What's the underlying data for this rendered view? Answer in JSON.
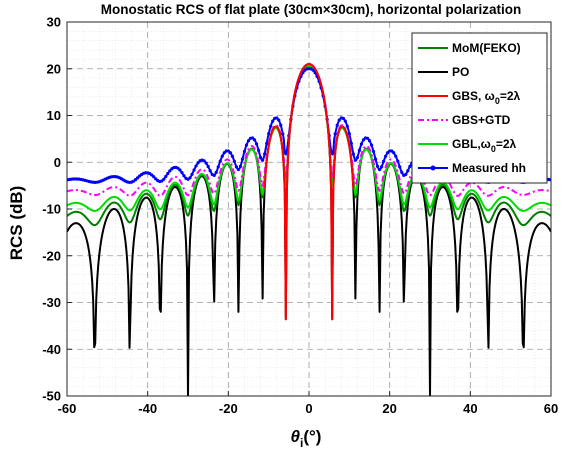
{
  "chart_data": {
    "type": "line",
    "title": "Monostatic RCS of flat plate (30cm×30cm), horizontal polarization",
    "xlabel": "θi(°)",
    "xlabel_main": "θ",
    "xlabel_sub": "i",
    "xlabel_unit": "(°)",
    "ylabel": "RCS (dB)",
    "xlim": [
      -60,
      60
    ],
    "ylim": [
      -50,
      30
    ],
    "x_ticks": [
      -60,
      -40,
      -20,
      0,
      20,
      40,
      60
    ],
    "y_ticks": [
      -50,
      -40,
      -30,
      -20,
      -10,
      0,
      10,
      20,
      30
    ],
    "grid": true,
    "minor_grid": true,
    "legend_position": "top-right",
    "model": {
      "frequency_GHz": 10,
      "plate_width_m": 0.3,
      "peak_dB": 21,
      "x_step_deg": 0.25
    },
    "series": [
      {
        "name": "MoM(FEKO)",
        "color": "#008000",
        "style": "solid",
        "model": "pattern",
        "floor_dB": -50,
        "offset_dB": 0,
        "edge_dB": 7,
        "edge_pow": 1.0,
        "fill_dB": 0,
        "peak_dB": 20.5
      },
      {
        "name": "PO",
        "color": "#000000",
        "style": "solid",
        "model": "pattern",
        "floor_dB": -50,
        "offset_dB": 0,
        "edge_dB": 0,
        "edge_pow": 1.0,
        "fill_dB": 0,
        "peak_dB": 21
      },
      {
        "name": "GBS, ω₀=2λ",
        "legend_main": "GBS, ω",
        "legend_sub": "0",
        "legend_tail": "=2λ",
        "color": "#ff0000",
        "style": "solid",
        "model": "main",
        "floor_dB": -50,
        "offset_dB": 0,
        "edge_dB": 0,
        "edge_pow": 1.0,
        "fill_dB": 0,
        "peak_dB": 21,
        "x_range": [
          -11,
          11
        ]
      },
      {
        "name": "GBS+GTD",
        "color": "#ff00ff",
        "style": "dashdot",
        "model": "pattern",
        "floor_dB": -33,
        "offset_dB": 0,
        "edge_dB": 11,
        "edge_pow": 1.3,
        "fill_dB": 10,
        "peak_dB": 21
      },
      {
        "name": "GBL,ω₀=2λ",
        "legend_main": "GBL,ω",
        "legend_sub": "0",
        "legend_tail": "=2λ",
        "color": "#00dd00",
        "style": "solid",
        "model": "pattern",
        "floor_dB": -38,
        "offset_dB": 0,
        "edge_dB": 9,
        "edge_pow": 1.2,
        "fill_dB": 5,
        "peak_dB": 20.5
      },
      {
        "name": "Measured hh",
        "color": "#0000ff",
        "style": "solid-marker",
        "model": "pattern",
        "floor_dB": -25,
        "offset_dB": 2,
        "edge_dB": 12,
        "edge_pow": 0.8,
        "fill_dB": 12,
        "peak_dB": 20
      }
    ]
  }
}
